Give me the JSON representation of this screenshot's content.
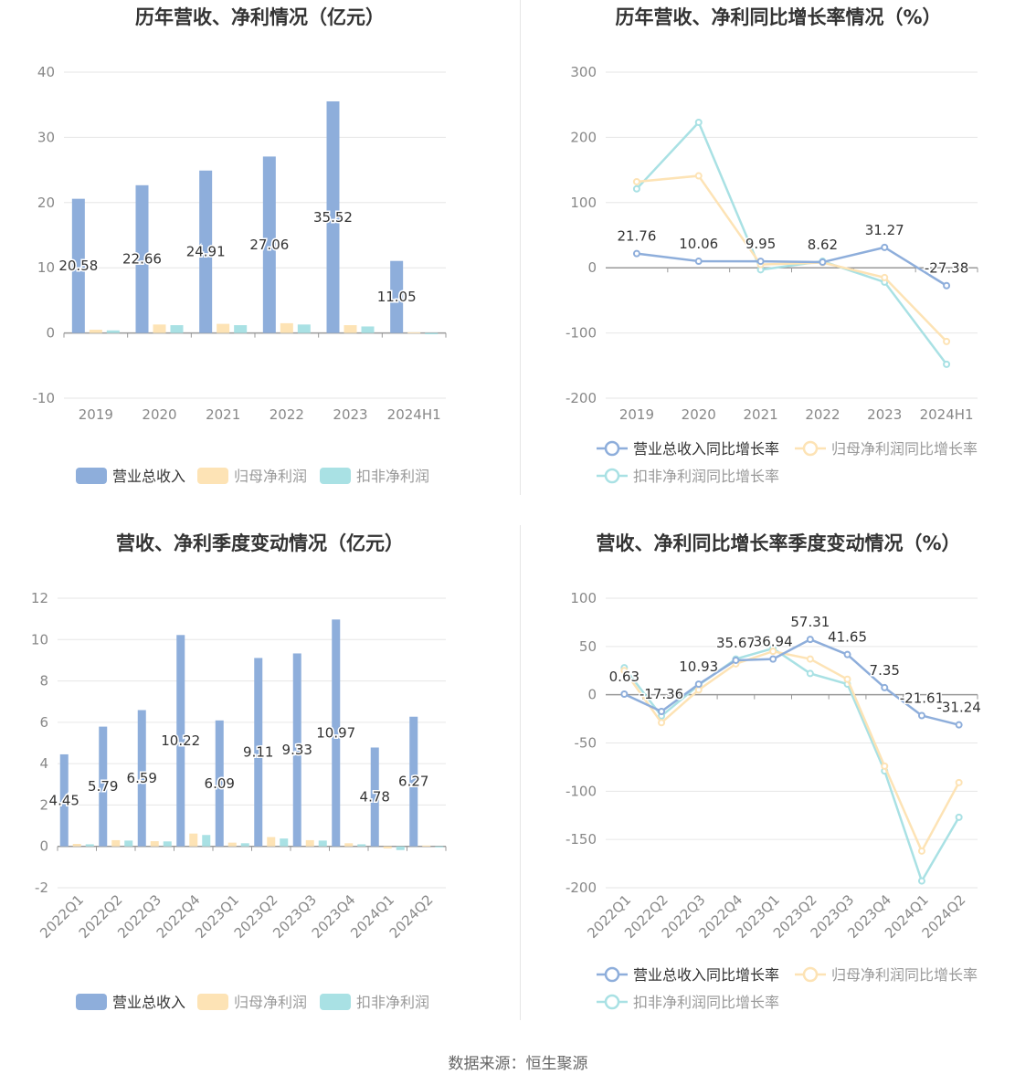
{
  "colors": {
    "revenue": "#8eaedb",
    "net_profit": "#fde3b5",
    "deducted_profit": "#a9e1e4",
    "grid": "#e6e6e6",
    "axis_text": "#888888",
    "title": "#333333"
  },
  "source_text": "数据来源：恒生聚源",
  "chart_data": [
    {
      "id": "annual_amounts",
      "type": "bar",
      "title": "历年营收、净利情况（亿元）",
      "categories": [
        "2019",
        "2020",
        "2021",
        "2022",
        "2023",
        "2024H1"
      ],
      "ylim": [
        -10,
        40
      ],
      "yticks": [
        -10,
        0,
        10,
        20,
        30,
        40
      ],
      "grid": true,
      "legend_position": "bottom",
      "series": [
        {
          "name": "营业总收入",
          "color_key": "revenue",
          "values": [
            20.58,
            22.66,
            24.91,
            27.06,
            35.52,
            11.05
          ],
          "labels": [
            "20.58",
            "22.66",
            "24.91",
            "27.06",
            "35.52",
            "11.05"
          ]
        },
        {
          "name": "归母净利润",
          "color_key": "net_profit",
          "values": [
            0.5,
            1.3,
            1.4,
            1.5,
            1.2,
            0.1
          ]
        },
        {
          "name": "扣非净利润",
          "color_key": "deducted_profit",
          "values": [
            0.4,
            1.2,
            1.2,
            1.3,
            1.0,
            -0.2
          ]
        }
      ]
    },
    {
      "id": "annual_growth",
      "type": "line",
      "title": "历年营收、净利同比增长率情况（%）",
      "categories": [
        "2019",
        "2020",
        "2021",
        "2022",
        "2023",
        "2024H1"
      ],
      "ylim": [
        -200,
        300
      ],
      "yticks": [
        -200,
        -100,
        0,
        100,
        200,
        300
      ],
      "grid": true,
      "legend_position": "bottom",
      "series": [
        {
          "name": "营业总收入同比增长率",
          "color_key": "revenue",
          "values": [
            21.76,
            10.06,
            9.95,
            8.62,
            31.27,
            -27.38
          ],
          "labels": [
            "21.76",
            "10.06",
            "9.95",
            "8.62",
            "31.27",
            "-27.38"
          ]
        },
        {
          "name": "归母净利润同比增长率",
          "color_key": "net_profit",
          "values": [
            132,
            141,
            5,
            8,
            -15,
            -113
          ]
        },
        {
          "name": "扣非净利润同比增长率",
          "color_key": "deducted_profit",
          "values": [
            121,
            223,
            -3,
            10,
            -22,
            -148
          ]
        }
      ]
    },
    {
      "id": "quarterly_amounts",
      "type": "bar",
      "title": "营收、净利季度变动情况（亿元）",
      "categories": [
        "2022Q1",
        "2022Q2",
        "2022Q3",
        "2022Q4",
        "2023Q1",
        "2023Q2",
        "2023Q3",
        "2023Q4",
        "2024Q1",
        "2024Q2"
      ],
      "ylim": [
        -2,
        12
      ],
      "yticks": [
        -2,
        0,
        2,
        4,
        6,
        8,
        10,
        12
      ],
      "grid": true,
      "legend_position": "bottom",
      "series": [
        {
          "name": "营业总收入",
          "color_key": "revenue",
          "values": [
            4.45,
            5.79,
            6.59,
            10.22,
            6.09,
            9.11,
            9.33,
            10.97,
            4.78,
            6.27
          ],
          "labels": [
            "4.45",
            "5.79",
            "6.59",
            "10.22",
            "6.09",
            "9.11",
            "9.33",
            "10.97",
            "4.78",
            "6.27"
          ]
        },
        {
          "name": "归母净利润",
          "color_key": "net_profit",
          "values": [
            0.12,
            0.3,
            0.25,
            0.62,
            0.18,
            0.45,
            0.3,
            0.15,
            -0.1,
            0.04
          ]
        },
        {
          "name": "扣非净利润",
          "color_key": "deducted_profit",
          "values": [
            0.1,
            0.28,
            0.24,
            0.55,
            0.15,
            0.38,
            0.28,
            0.1,
            -0.18,
            -0.05
          ]
        }
      ]
    },
    {
      "id": "quarterly_growth",
      "type": "line",
      "title": "营收、净利同比增长率季度变动情况（%）",
      "categories": [
        "2022Q1",
        "2022Q2",
        "2022Q3",
        "2022Q4",
        "2023Q1",
        "2023Q2",
        "2023Q3",
        "2023Q4",
        "2024Q1",
        "2024Q2"
      ],
      "ylim": [
        -200,
        100
      ],
      "yticks": [
        -200,
        -150,
        -100,
        -50,
        0,
        50,
        100
      ],
      "grid": true,
      "legend_position": "bottom",
      "series": [
        {
          "name": "营业总收入同比增长率",
          "color_key": "revenue",
          "values": [
            0.63,
            -17.36,
            10.93,
            35.67,
            36.94,
            57.31,
            41.65,
            7.35,
            -21.61,
            -31.24
          ],
          "labels": [
            "0.63",
            "-17.36",
            "10.93",
            "35.67",
            "36.94",
            "57.31",
            "41.65",
            "7.35",
            "-21.61",
            "-31.24"
          ]
        },
        {
          "name": "归母净利润同比增长率",
          "color_key": "net_profit",
          "values": [
            25,
            -29,
            5,
            32,
            45,
            37,
            16,
            -74,
            -162,
            -91
          ]
        },
        {
          "name": "扣非净利润同比增长率",
          "color_key": "deducted_profit",
          "values": [
            28,
            -22,
            10,
            37,
            48,
            22,
            11,
            -79,
            -193,
            -127
          ]
        }
      ]
    }
  ]
}
